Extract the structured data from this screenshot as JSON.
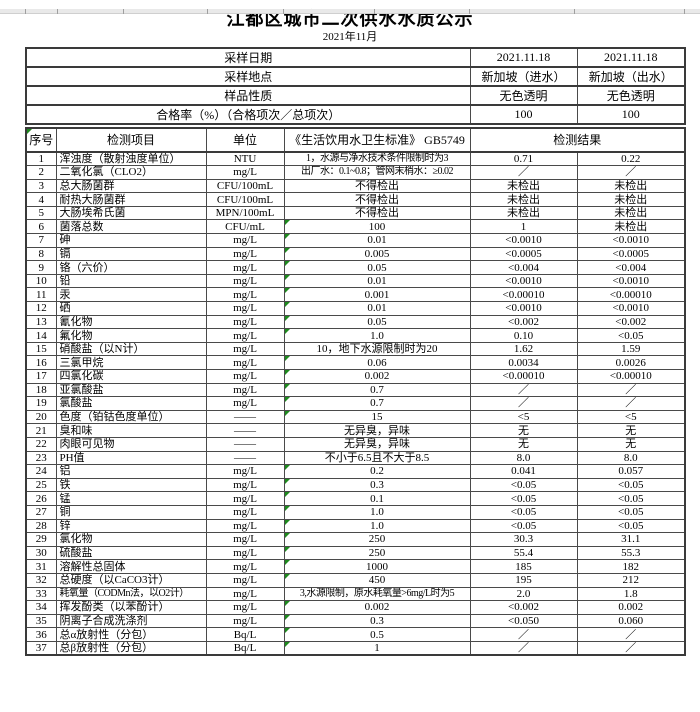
{
  "page": {
    "title": "江都区城市二次供水水质公示",
    "subtitle": "2021年11月"
  },
  "colors": {
    "flag_green": "#1e8a1e",
    "border_dark": "#3a3a3a",
    "border_inner": "#4a4a4a",
    "strip_grey": "#e9e9e9"
  },
  "icons": {
    "cell_flag": "green-corner-triangle"
  },
  "summary": {
    "rows": [
      {
        "label": "采样日期",
        "col1": "2021.11.18",
        "col2": "2021.11.18"
      },
      {
        "label": "采样地点",
        "col1": "新加坡（进水）",
        "col2": "新加坡（出水）"
      },
      {
        "label": "样品性质",
        "col1": "无色透明",
        "col2": "无色透明"
      },
      {
        "label": "合格率（%）（合格项次／总项次）",
        "col1": "100",
        "col2": "100"
      }
    ]
  },
  "table": {
    "headers": {
      "no": "序号",
      "item": "检测项目",
      "unit": "单位",
      "standard": "《生活饮用水卫生标准》 GB5749",
      "result": "检测结果"
    },
    "rows": [
      {
        "no": "1",
        "item": "浑浊度（散射浊度单位）",
        "unit": "NTU",
        "standard": "1，水源与净水技术条件限制时为3",
        "r1": "0.71",
        "r2": "0.22",
        "flag": false
      },
      {
        "no": "2",
        "item": "二氧化氯（CLO2）",
        "unit": "mg/L",
        "standard": "出厂水：0.1~0.8；管网末梢水：≥0.02",
        "r1": "／",
        "r2": "／",
        "flag": false
      },
      {
        "no": "3",
        "item": "总大肠菌群",
        "unit": "CFU/100mL",
        "standard": "不得检出",
        "r1": "未检出",
        "r2": "未检出",
        "flag": false
      },
      {
        "no": "4",
        "item": "耐热大肠菌群",
        "unit": "CFU/100mL",
        "standard": "不得检出",
        "r1": "未检出",
        "r2": "未检出",
        "flag": false
      },
      {
        "no": "5",
        "item": "大肠埃希氏菌",
        "unit": "MPN/100mL",
        "standard": "不得检出",
        "r1": "未检出",
        "r2": "未检出",
        "flag": false
      },
      {
        "no": "6",
        "item": "菌落总数",
        "unit": "CFU/mL",
        "standard": "100",
        "r1": "1",
        "r2": "未检出",
        "flag": true
      },
      {
        "no": "7",
        "item": "砷",
        "unit": "mg/L",
        "standard": "0.01",
        "r1": "<0.0010",
        "r2": "<0.0010",
        "flag": true
      },
      {
        "no": "8",
        "item": "镉",
        "unit": "mg/L",
        "standard": "0.005",
        "r1": "<0.0005",
        "r2": "<0.0005",
        "flag": true
      },
      {
        "no": "9",
        "item": "铬（六价）",
        "unit": "mg/L",
        "standard": "0.05",
        "r1": "<0.004",
        "r2": "<0.004",
        "flag": true
      },
      {
        "no": "10",
        "item": "铅",
        "unit": "mg/L",
        "standard": "0.01",
        "r1": "<0.0010",
        "r2": "<0.0010",
        "flag": true
      },
      {
        "no": "11",
        "item": "汞",
        "unit": "mg/L",
        "standard": "0.001",
        "r1": "<0.00010",
        "r2": "<0.00010",
        "flag": true
      },
      {
        "no": "12",
        "item": "硒",
        "unit": "mg/L",
        "standard": "0.01",
        "r1": "<0.0010",
        "r2": "<0.0010",
        "flag": true
      },
      {
        "no": "13",
        "item": "氰化物",
        "unit": "mg/L",
        "standard": "0.05",
        "r1": "<0.002",
        "r2": "<0.002",
        "flag": true
      },
      {
        "no": "14",
        "item": "氟化物",
        "unit": "mg/L",
        "standard": "1.0",
        "r1": "0.10",
        "r2": "<0.05",
        "flag": true
      },
      {
        "no": "15",
        "item": "硝酸盐（以N计）",
        "unit": "mg/L",
        "standard": "10，地下水源限制时为20",
        "r1": "1.62",
        "r2": "1.59",
        "flag": false
      },
      {
        "no": "16",
        "item": "三氯甲烷",
        "unit": "mg/L",
        "standard": "0.06",
        "r1": "0.0034",
        "r2": "0.0026",
        "flag": true
      },
      {
        "no": "17",
        "item": "四氯化碳",
        "unit": "mg/L",
        "standard": "0.002",
        "r1": "<0.00010",
        "r2": "<0.00010",
        "flag": true
      },
      {
        "no": "18",
        "item": "亚氯酸盐",
        "unit": "mg/L",
        "standard": "0.7",
        "r1": "／",
        "r2": "／",
        "flag": true
      },
      {
        "no": "19",
        "item": "氯酸盐",
        "unit": "mg/L",
        "standard": "0.7",
        "r1": "／",
        "r2": "／",
        "flag": true
      },
      {
        "no": "20",
        "item": "色度（铂钴色度单位）",
        "unit": "——",
        "standard": "15",
        "r1": "<5",
        "r2": "<5",
        "flag": true
      },
      {
        "no": "21",
        "item": "臭和味",
        "unit": "——",
        "standard": "无异臭，异味",
        "r1": "无",
        "r2": "无",
        "flag": false
      },
      {
        "no": "22",
        "item": "肉眼可见物",
        "unit": "——",
        "standard": "无异臭，异味",
        "r1": "无",
        "r2": "无",
        "flag": false
      },
      {
        "no": "23",
        "item": "PH值",
        "unit": "——",
        "standard": "不小于6.5且不大于8.5",
        "r1": "8.0",
        "r2": "8.0",
        "flag": false
      },
      {
        "no": "24",
        "item": "铝",
        "unit": "mg/L",
        "standard": "0.2",
        "r1": "0.041",
        "r2": "0.057",
        "flag": true
      },
      {
        "no": "25",
        "item": "铁",
        "unit": "mg/L",
        "standard": "0.3",
        "r1": "<0.05",
        "r2": "<0.05",
        "flag": true
      },
      {
        "no": "26",
        "item": "锰",
        "unit": "mg/L",
        "standard": "0.1",
        "r1": "<0.05",
        "r2": "<0.05",
        "flag": true
      },
      {
        "no": "27",
        "item": "铜",
        "unit": "mg/L",
        "standard": "1.0",
        "r1": "<0.05",
        "r2": "<0.05",
        "flag": true
      },
      {
        "no": "28",
        "item": "锌",
        "unit": "mg/L",
        "standard": "1.0",
        "r1": "<0.05",
        "r2": "<0.05",
        "flag": true
      },
      {
        "no": "29",
        "item": "氯化物",
        "unit": "mg/L",
        "standard": "250",
        "r1": "30.3",
        "r2": "31.1",
        "flag": true
      },
      {
        "no": "30",
        "item": "硫酸盐",
        "unit": "mg/L",
        "standard": "250",
        "r1": "55.4",
        "r2": "55.3",
        "flag": true
      },
      {
        "no": "31",
        "item": "溶解性总固体",
        "unit": "mg/L",
        "standard": "1000",
        "r1": "185",
        "r2": "182",
        "flag": true
      },
      {
        "no": "32",
        "item": "总硬度（以CaCO3计）",
        "unit": "mg/L",
        "standard": "450",
        "r1": "195",
        "r2": "212",
        "flag": true
      },
      {
        "no": "33",
        "item": "耗氧量（CODMn法，以O2计）",
        "unit": "mg/L",
        "standard": "3,水源限制，原水耗氧量>6mg/L时为5",
        "r1": "2.0",
        "r2": "1.8",
        "flag": false
      },
      {
        "no": "34",
        "item": "挥发酚类（以苯酚计）",
        "unit": "mg/L",
        "standard": "0.002",
        "r1": "<0.002",
        "r2": "0.002",
        "flag": true
      },
      {
        "no": "35",
        "item": "阴离子合成洗涤剂",
        "unit": "mg/L",
        "standard": "0.3",
        "r1": "<0.050",
        "r2": "0.060",
        "flag": true
      },
      {
        "no": "36",
        "item": "总α放射性（分包）",
        "unit": "Bq/L",
        "standard": "0.5",
        "r1": "／",
        "r2": "／",
        "flag": true
      },
      {
        "no": "37",
        "item": "总β放射性（分包）",
        "unit": "Bq/L",
        "standard": "1",
        "r1": "／",
        "r2": "／",
        "flag": true
      }
    ]
  }
}
